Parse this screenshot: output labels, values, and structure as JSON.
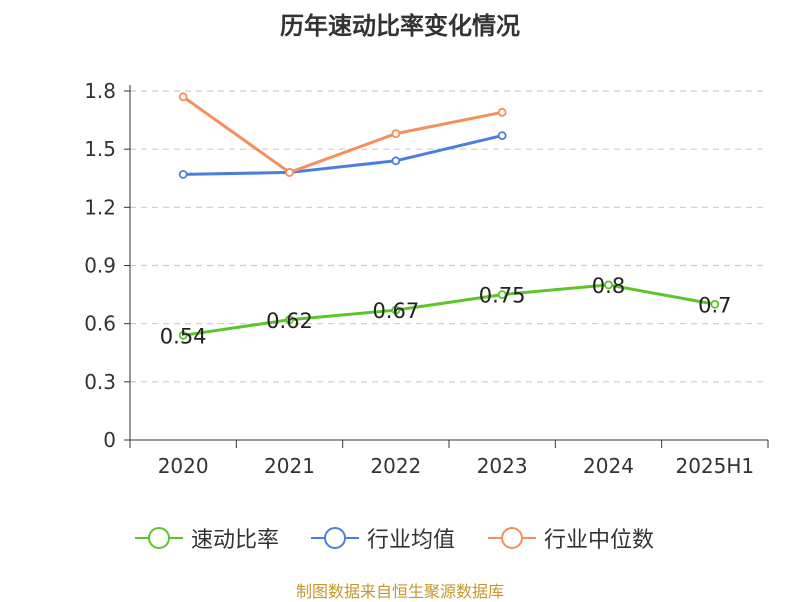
{
  "chart_data": {
    "type": "line",
    "title": "历年速动比率变化情况",
    "categories": [
      "2020",
      "2021",
      "2022",
      "2023",
      "2024",
      "2025H1"
    ],
    "yticks": [
      "0",
      "0.3",
      "0.6",
      "0.9",
      "1.2",
      "1.5",
      "1.8"
    ],
    "ylim": [
      0,
      1.8
    ],
    "grid": true,
    "legend_position": "bottom",
    "series": [
      {
        "name": "速动比率",
        "color": "#5bc52a",
        "labels": true,
        "values": [
          0.54,
          0.62,
          0.67,
          0.75,
          0.8,
          0.7
        ]
      },
      {
        "name": "行业均值",
        "color": "#4a7fdc",
        "labels": false,
        "values": [
          1.37,
          1.38,
          1.44,
          1.57,
          null,
          null
        ]
      },
      {
        "name": "行业中位数",
        "color": "#f58f5b",
        "labels": false,
        "values": [
          1.77,
          1.38,
          1.58,
          1.69,
          null,
          null
        ]
      }
    ]
  },
  "source_note": "制图数据来自恒生聚源数据库"
}
